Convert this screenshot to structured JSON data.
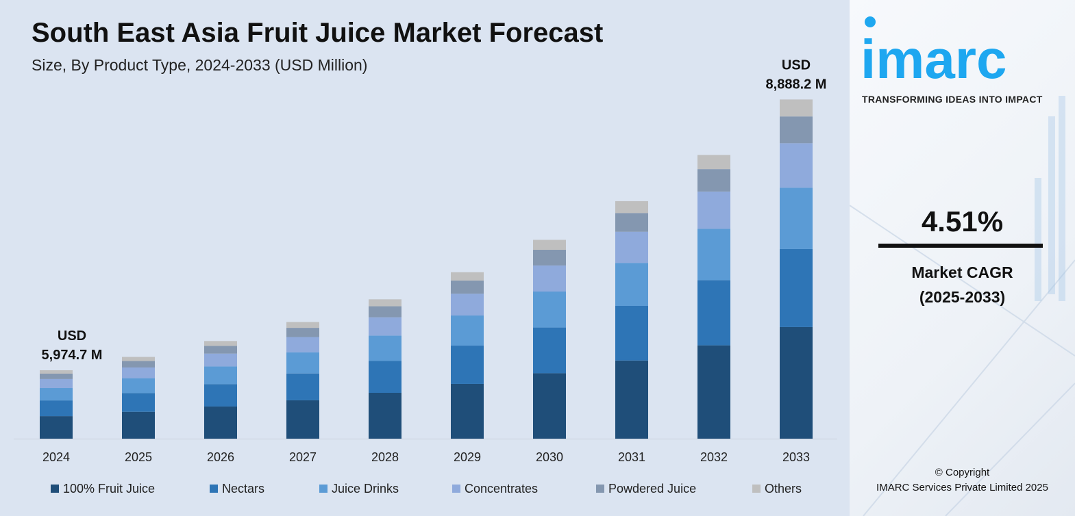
{
  "chart_data": {
    "type": "bar",
    "stacked": true,
    "title": "South East Asia Fruit Juice Market Forecast",
    "subtitle": "Size, By Product Type, 2024-2033 (USD Million)",
    "categories": [
      "2024",
      "2025",
      "2026",
      "2027",
      "2028",
      "2029",
      "2030",
      "2031",
      "2032",
      "2033"
    ],
    "totals": [
      5974.7,
      6244,
      6526,
      6820,
      7128,
      7449,
      7785,
      8136,
      8503,
      8888.2
    ],
    "series": [
      {
        "name": "100% Fruit Juice",
        "color": "#1f4e79",
        "values": [
          1966,
          2054,
          2147,
          2244,
          2345,
          2451,
          2561,
          2677,
          2797,
          2924
        ]
      },
      {
        "name": "Nectars",
        "color": "#2e75b6",
        "values": [
          1374,
          1436,
          1501,
          1569,
          1639,
          1713,
          1791,
          1871,
          1956,
          2044
        ]
      },
      {
        "name": "Juice Drinks",
        "color": "#5b9bd5",
        "values": [
          1081,
          1130,
          1181,
          1234,
          1290,
          1348,
          1409,
          1473,
          1539,
          1609
        ]
      },
      {
        "name": "Concentrates",
        "color": "#8faadc",
        "values": [
          783,
          818,
          855,
          893,
          934,
          976,
          1020,
          1066,
          1114,
          1164
        ]
      },
      {
        "name": "Powdered Juice",
        "color": "#8497b0",
        "values": [
          472,
          493,
          516,
          539,
          563,
          588,
          615,
          643,
          672,
          702
        ]
      },
      {
        "name": "Others",
        "color": "#bfbfbf",
        "values": [
          299,
          313,
          326,
          341,
          357,
          373,
          389,
          406,
          425,
          445
        ]
      }
    ],
    "annotations": [
      {
        "category": "2024",
        "lines": [
          "USD",
          "5,974.7 M"
        ]
      },
      {
        "category": "2033",
        "lines": [
          "USD",
          "8,888.2 M"
        ]
      }
    ],
    "grid": false,
    "legend_position": "bottom"
  },
  "brand": {
    "logo_text": "imarc",
    "tagline": "TRANSFORMING IDEAS INTO IMPACT",
    "color": "#1ea7f0"
  },
  "cagr": {
    "value": "4.51%",
    "label_line1": "Market CAGR",
    "label_line2": "(2025-2033)"
  },
  "copyright": {
    "line1": "© Copyright",
    "line2": "IMARC Services Private Limited 2025"
  }
}
